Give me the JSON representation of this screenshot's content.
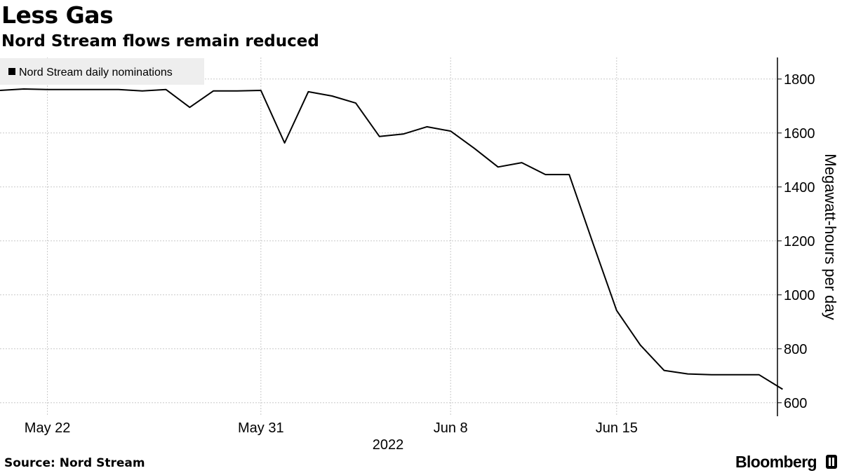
{
  "title": "Less Gas",
  "subtitle": "Nord Stream flows remain reduced",
  "source": "Source: Nord Stream",
  "brand": "Bloomberg",
  "colors": {
    "line": "#000000",
    "grid": "#c9c9c9",
    "legend_bg": "#eeeeee"
  },
  "chart_data": {
    "type": "line",
    "title": "Less Gas",
    "subtitle": "Nord Stream flows remain reduced",
    "ylabel": "Megawatt-hours per day",
    "xlabel": "2022",
    "ylim": [
      550,
      1880
    ],
    "yticks": [
      600,
      800,
      1000,
      1200,
      1400,
      1600,
      1800
    ],
    "x_range": [
      "2022-05-20",
      "2022-06-22"
    ],
    "xticks": [
      {
        "date": "2022-05-22",
        "label": "May 22"
      },
      {
        "date": "2022-05-31",
        "label": "May 31"
      },
      {
        "date": "2022-06-08",
        "label": "Jun 8"
      },
      {
        "date": "2022-06-15",
        "label": "Jun 15"
      }
    ],
    "y_axis_side": "right",
    "grid": true,
    "legend_position": "top-left",
    "series": [
      {
        "name": "Nord Stream daily nominations",
        "color": "#000000",
        "points": [
          {
            "x": "2022-05-20",
            "y": 1758
          },
          {
            "x": "2022-05-21",
            "y": 1763
          },
          {
            "x": "2022-05-22",
            "y": 1761
          },
          {
            "x": "2022-05-23",
            "y": 1761
          },
          {
            "x": "2022-05-24",
            "y": 1761
          },
          {
            "x": "2022-05-25",
            "y": 1761
          },
          {
            "x": "2022-05-26",
            "y": 1756
          },
          {
            "x": "2022-05-27",
            "y": 1761
          },
          {
            "x": "2022-05-28",
            "y": 1695
          },
          {
            "x": "2022-05-29",
            "y": 1756
          },
          {
            "x": "2022-05-30",
            "y": 1756
          },
          {
            "x": "2022-05-31",
            "y": 1758
          },
          {
            "x": "2022-06-01",
            "y": 1563
          },
          {
            "x": "2022-06-02",
            "y": 1753
          },
          {
            "x": "2022-06-03",
            "y": 1737
          },
          {
            "x": "2022-06-04",
            "y": 1711
          },
          {
            "x": "2022-06-05",
            "y": 1587
          },
          {
            "x": "2022-06-06",
            "y": 1596
          },
          {
            "x": "2022-06-07",
            "y": 1623
          },
          {
            "x": "2022-06-08",
            "y": 1607
          },
          {
            "x": "2022-06-09",
            "y": 1543
          },
          {
            "x": "2022-06-10",
            "y": 1474
          },
          {
            "x": "2022-06-11",
            "y": 1490
          },
          {
            "x": "2022-06-12",
            "y": 1446
          },
          {
            "x": "2022-06-13",
            "y": 1446
          },
          {
            "x": "2022-06-14",
            "y": 1192
          },
          {
            "x": "2022-06-15",
            "y": 942
          },
          {
            "x": "2022-06-16",
            "y": 814
          },
          {
            "x": "2022-06-17",
            "y": 720
          },
          {
            "x": "2022-06-18",
            "y": 707
          },
          {
            "x": "2022-06-19",
            "y": 704
          },
          {
            "x": "2022-06-20",
            "y": 704
          },
          {
            "x": "2022-06-21",
            "y": 704
          },
          {
            "x": "2022-06-22",
            "y": 650
          }
        ]
      }
    ]
  }
}
